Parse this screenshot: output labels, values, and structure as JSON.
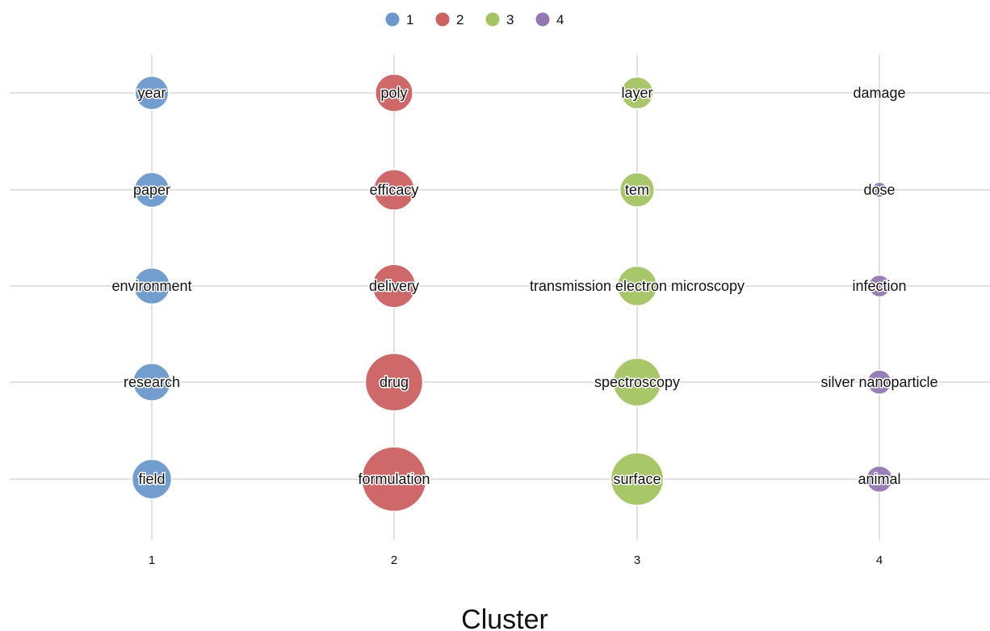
{
  "chart_data": {
    "type": "scatter",
    "xlabel": "Cluster",
    "ylabel": "",
    "x_categories": [
      "1",
      "2",
      "3",
      "4"
    ],
    "legend": {
      "placement": "top-center",
      "entries": [
        "1",
        "2",
        "3",
        "4"
      ]
    },
    "grid": true,
    "colors": {
      "1": "#6a98cc",
      "2": "#cc6161",
      "3": "#a3c460",
      "4": "#9478b4"
    },
    "points": [
      {
        "cluster": "1",
        "rank": 1,
        "term": "year",
        "weight": 0.28
      },
      {
        "cluster": "1",
        "rank": 2,
        "term": "paper",
        "weight": 0.31
      },
      {
        "cluster": "1",
        "rank": 3,
        "term": "environment",
        "weight": 0.34
      },
      {
        "cluster": "1",
        "rank": 4,
        "term": "research",
        "weight": 0.37
      },
      {
        "cluster": "1",
        "rank": 5,
        "term": "field",
        "weight": 0.42
      },
      {
        "cluster": "2",
        "rank": 1,
        "term": "poly",
        "weight": 0.37
      },
      {
        "cluster": "2",
        "rank": 2,
        "term": "efficacy",
        "weight": 0.45
      },
      {
        "cluster": "2",
        "rank": 3,
        "term": "delivery",
        "weight": 0.52
      },
      {
        "cluster": "2",
        "rank": 4,
        "term": "drug",
        "weight": 1.0
      },
      {
        "cluster": "2",
        "rank": 5,
        "term": "formulation",
        "weight": 1.3
      },
      {
        "cluster": "3",
        "rank": 1,
        "term": "layer",
        "weight": 0.25
      },
      {
        "cluster": "3",
        "rank": 2,
        "term": "tem",
        "weight": 0.3
      },
      {
        "cluster": "3",
        "rank": 3,
        "term": "transmission electron microscopy",
        "weight": 0.42
      },
      {
        "cluster": "3",
        "rank": 4,
        "term": "spectroscopy",
        "weight": 0.66
      },
      {
        "cluster": "3",
        "rank": 5,
        "term": "surface",
        "weight": 0.82
      },
      {
        "cluster": "4",
        "rank": 1,
        "term": "damage",
        "weight": 0.01
      },
      {
        "cluster": "4",
        "rank": 2,
        "term": "dose",
        "weight": 0.03
      },
      {
        "cluster": "4",
        "rank": 3,
        "term": "infection",
        "weight": 0.09
      },
      {
        "cluster": "4",
        "rank": 4,
        "term": "silver nanoparticle",
        "weight": 0.12
      },
      {
        "cluster": "4",
        "rank": 5,
        "term": "animal",
        "weight": 0.15
      }
    ]
  }
}
